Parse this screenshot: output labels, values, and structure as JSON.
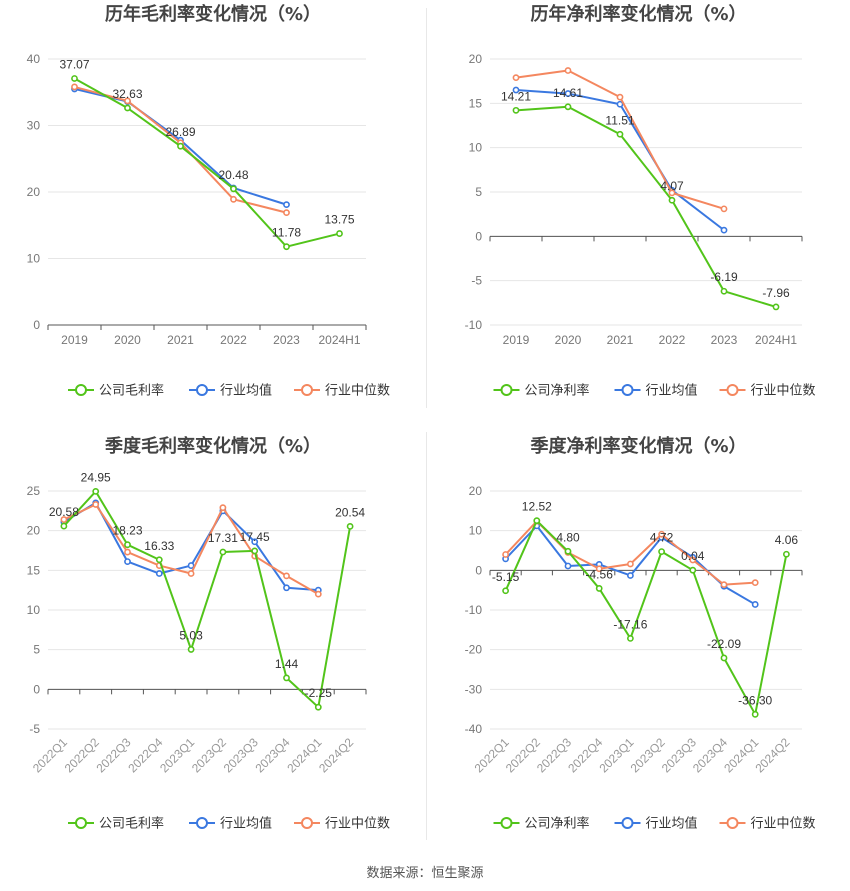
{
  "source_text": "数据来源：恒生聚源",
  "colors": {
    "company": "#52c41a",
    "industry_avg": "#3a78e0",
    "industry_median": "#f4875f"
  },
  "chart_data": [
    {
      "type": "line",
      "title": "历年毛利率变化情况（%）",
      "categories": [
        "2019",
        "2020",
        "2021",
        "2022",
        "2023",
        "2024H1"
      ],
      "ylim": [
        0,
        40
      ],
      "yticks": [
        0,
        10,
        20,
        30,
        40
      ],
      "grid": true,
      "legend_position": "bottom",
      "series": [
        {
          "name": "公司毛利率",
          "values": [
            37.07,
            32.63,
            26.89,
            20.48,
            11.78,
            13.75
          ],
          "labels": [
            "37.07",
            "32.63",
            "26.89",
            "20.48",
            "11.78",
            "13.75"
          ]
        },
        {
          "name": "行业均值",
          "values": [
            35.5,
            33.6,
            27.8,
            20.6,
            18.1,
            null
          ]
        },
        {
          "name": "行业中位数",
          "values": [
            35.8,
            33.7,
            27.4,
            18.9,
            16.9,
            null
          ]
        }
      ]
    },
    {
      "type": "line",
      "title": "历年净利率变化情况（%）",
      "categories": [
        "2019",
        "2020",
        "2021",
        "2022",
        "2023",
        "2024H1"
      ],
      "ylim": [
        -10,
        20
      ],
      "yticks": [
        -10,
        -5,
        0,
        5,
        10,
        15,
        20
      ],
      "grid": true,
      "legend_position": "bottom",
      "series": [
        {
          "name": "公司净利率",
          "values": [
            14.21,
            14.61,
            11.51,
            4.07,
            -6.19,
            -7.96
          ],
          "labels": [
            "14.21",
            "14.61",
            "11.51",
            "4.07",
            "-6.19",
            "-7.96"
          ]
        },
        {
          "name": "行业均值",
          "values": [
            16.5,
            16.1,
            14.9,
            5.2,
            0.7,
            null
          ]
        },
        {
          "name": "行业中位数",
          "values": [
            17.9,
            18.7,
            15.7,
            4.9,
            3.1,
            null
          ]
        }
      ]
    },
    {
      "type": "line",
      "title": "季度毛利率变化情况（%）",
      "categories": [
        "2022Q1",
        "2022Q2",
        "2022Q3",
        "2022Q4",
        "2023Q1",
        "2023Q2",
        "2023Q3",
        "2023Q4",
        "2024Q1",
        "2024Q2"
      ],
      "ylim": [
        -5,
        25
      ],
      "yticks": [
        -5,
        0,
        5,
        10,
        15,
        20,
        25
      ],
      "grid": true,
      "legend_position": "bottom",
      "series": [
        {
          "name": "公司毛利率",
          "values": [
            20.58,
            24.95,
            18.23,
            16.33,
            5.03,
            17.31,
            17.45,
            1.44,
            -2.25,
            20.54
          ],
          "labels": [
            "20.58",
            "24.95",
            "18.23",
            "16.33",
            "5.03",
            "17.31",
            "17.45",
            "1.44",
            "-2.25",
            "20.54"
          ]
        },
        {
          "name": "行业均值",
          "values": [
            21.1,
            23.5,
            16.1,
            14.6,
            15.6,
            22.5,
            18.6,
            12.8,
            12.5,
            null
          ]
        },
        {
          "name": "行业中位数",
          "values": [
            21.4,
            23.3,
            17.3,
            15.6,
            14.6,
            22.9,
            16.8,
            14.3,
            12.0,
            null
          ]
        }
      ]
    },
    {
      "type": "line",
      "title": "季度净利率变化情况（%）",
      "categories": [
        "2022Q1",
        "2022Q2",
        "2022Q3",
        "2022Q4",
        "2023Q1",
        "2023Q2",
        "2023Q3",
        "2023Q4",
        "2024Q1",
        "2024Q2"
      ],
      "ylim": [
        -40,
        20
      ],
      "yticks": [
        -40,
        -30,
        -20,
        -10,
        0,
        10,
        20
      ],
      "grid": true,
      "legend_position": "bottom",
      "series": [
        {
          "name": "公司净利率",
          "values": [
            -5.15,
            12.52,
            4.8,
            -4.56,
            -17.16,
            4.72,
            0.04,
            -22.09,
            -36.3,
            4.06
          ],
          "labels": [
            "-5.15",
            "12.52",
            "4.80",
            "-4.56",
            "-17.16",
            "4.72",
            "0.04",
            "-22.09",
            "-36.30",
            "4.06"
          ]
        },
        {
          "name": "行业均值",
          "values": [
            2.9,
            11.2,
            1.1,
            1.5,
            -1.3,
            8.3,
            3.3,
            -4.0,
            -8.6,
            null
          ]
        },
        {
          "name": "行业中位数",
          "values": [
            4.0,
            12.4,
            4.5,
            0.4,
            1.6,
            9.1,
            2.6,
            -3.6,
            -3.1,
            null
          ]
        }
      ]
    }
  ]
}
